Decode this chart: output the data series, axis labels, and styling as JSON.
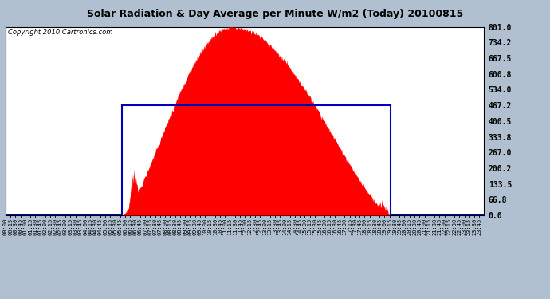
{
  "title": "Solar Radiation & Day Average per Minute W/m2 (Today) 20100815",
  "copyright": "Copyright 2010 Cartronics.com",
  "yticks": [
    0.0,
    66.8,
    133.5,
    200.2,
    267.0,
    333.8,
    400.5,
    467.2,
    534.0,
    600.8,
    667.5,
    734.2,
    801.0
  ],
  "ymax": 801.0,
  "ymin": 0.0,
  "day_avg": 467.2,
  "sunrise_min": 351,
  "sunset_min": 1157,
  "peak_min": 681,
  "peak_val": 801.0,
  "fill_color": "#FF0000",
  "rect_color": "#0000BB",
  "fig_bg": "#B0C0D0",
  "plot_bg": "#FFFFFF",
  "grid_color": "#FFFFFF",
  "xtick_every_min": 15,
  "title_fontsize": 9,
  "copyright_fontsize": 6,
  "ytick_fontsize": 7,
  "xtick_fontsize": 5
}
